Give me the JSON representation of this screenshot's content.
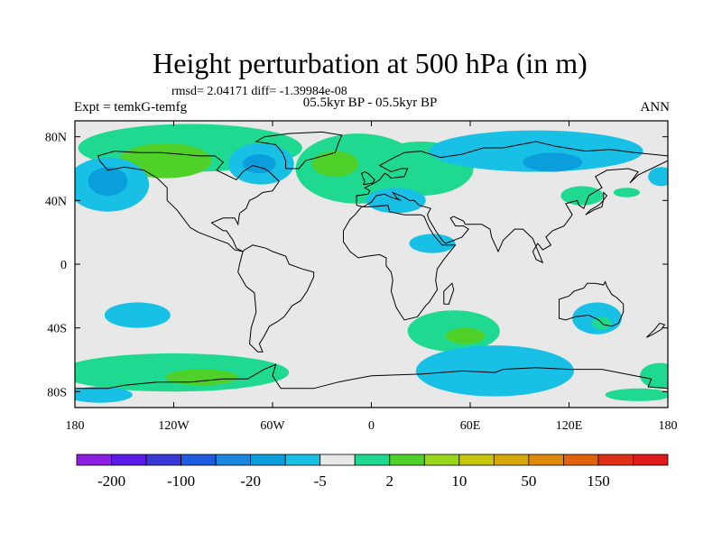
{
  "title": "Height perturbation at 500 hPa (in m)",
  "stats_line": "rmsd= 2.04171 diff= -1.39984e-08",
  "subtitle": "05.5kyr BP - 05.5kyr BP",
  "left_label": "Expt = temkG-temfg",
  "right_label": "ANN",
  "map": {
    "lon_range": [
      -180,
      180
    ],
    "lat_range": [
      -90,
      90
    ],
    "x_ticks": [
      {
        "lon": -180,
        "label": "180"
      },
      {
        "lon": -120,
        "label": "120W"
      },
      {
        "lon": -60,
        "label": "60W"
      },
      {
        "lon": 0,
        "label": "0"
      },
      {
        "lon": 60,
        "label": "60E"
      },
      {
        "lon": 120,
        "label": "120E"
      },
      {
        "lon": 180,
        "label": "180"
      }
    ],
    "y_ticks": [
      {
        "lat": 80,
        "label": "80N"
      },
      {
        "lat": 40,
        "label": "40N"
      },
      {
        "lat": 0,
        "label": "0"
      },
      {
        "lat": -40,
        "label": "40S"
      },
      {
        "lat": -80,
        "label": "80S"
      }
    ],
    "colors": {
      "background": "#e8e8e8",
      "neg_weak": "#18c0e6",
      "neg_mod": "#0a9fdc",
      "pos_weak": "#20d990",
      "pos_mod": "#50d12a"
    },
    "regions": [
      {
        "level": "pos_weak",
        "cx": -110,
        "cy": 73,
        "rx": 68,
        "ry": 15
      },
      {
        "level": "pos_mod",
        "cx": -125,
        "cy": 65,
        "rx": 28,
        "ry": 11
      },
      {
        "level": "pos_weak",
        "cx": -8,
        "cy": 60,
        "rx": 38,
        "ry": 22
      },
      {
        "level": "pos_mod",
        "cx": -22,
        "cy": 63,
        "rx": 14,
        "ry": 8
      },
      {
        "level": "pos_weak",
        "cx": 30,
        "cy": 60,
        "rx": 32,
        "ry": 17
      },
      {
        "level": "pos_weak",
        "cx": 128,
        "cy": 43,
        "rx": 13,
        "ry": 6
      },
      {
        "level": "pos_weak",
        "cx": 155,
        "cy": 45,
        "rx": 8,
        "ry": 3
      },
      {
        "level": "neg_weak",
        "cx": 100,
        "cy": 71,
        "rx": 65,
        "ry": 13
      },
      {
        "level": "neg_mod",
        "cx": 110,
        "cy": 64,
        "rx": 18,
        "ry": 6
      },
      {
        "level": "neg_weak",
        "cx": -67,
        "cy": 63,
        "rx": 20,
        "ry": 13
      },
      {
        "level": "neg_mod",
        "cx": -68,
        "cy": 63,
        "rx": 10,
        "ry": 6
      },
      {
        "level": "neg_weak",
        "cx": 15,
        "cy": 40,
        "rx": 18,
        "ry": 8
      },
      {
        "level": "neg_weak",
        "cx": 37,
        "cy": 13,
        "rx": 14,
        "ry": 6
      },
      {
        "level": "neg_weak",
        "cx": -160,
        "cy": 50,
        "rx": 25,
        "ry": 17
      },
      {
        "level": "neg_mod",
        "cx": -160,
        "cy": 52,
        "rx": 12,
        "ry": 9
      },
      {
        "level": "neg_weak",
        "cx": 176,
        "cy": 55,
        "rx": 8,
        "ry": 6
      },
      {
        "level": "neg_weak",
        "cx": -142,
        "cy": -32,
        "rx": 20,
        "ry": 8
      },
      {
        "level": "neg_weak",
        "cx": -158,
        "cy": -68,
        "rx": 30,
        "ry": 8
      },
      {
        "level": "pos_weak",
        "cx": -120,
        "cy": -68,
        "rx": 70,
        "ry": 12
      },
      {
        "level": "pos_mod",
        "cx": -103,
        "cy": -71,
        "rx": 22,
        "ry": 5
      },
      {
        "level": "neg_weak",
        "cx": -165,
        "cy": -82,
        "rx": 20,
        "ry": 5
      },
      {
        "level": "pos_weak",
        "cx": 50,
        "cy": -42,
        "rx": 28,
        "ry": 13
      },
      {
        "level": "pos_mod",
        "cx": 57,
        "cy": -45,
        "rx": 12,
        "ry": 5
      },
      {
        "level": "neg_weak",
        "cx": 75,
        "cy": -67,
        "rx": 48,
        "ry": 16
      },
      {
        "level": "neg_weak",
        "cx": 137,
        "cy": -34,
        "rx": 15,
        "ry": 10
      },
      {
        "level": "pos_weak",
        "cx": 140,
        "cy": -37,
        "rx": 6,
        "ry": 4
      },
      {
        "level": "pos_weak",
        "cx": 175,
        "cy": -70,
        "rx": 12,
        "ry": 8
      },
      {
        "level": "pos_weak",
        "cx": 162,
        "cy": -82,
        "rx": 20,
        "ry": 4
      }
    ]
  },
  "colorbar": {
    "colors": [
      "#8c1fe0",
      "#5b1ae6",
      "#3838d6",
      "#1e5be0",
      "#1a86e0",
      "#0a9fdc",
      "#18c0e6",
      "#e8e8e8",
      "#20d990",
      "#50d12a",
      "#98d61a",
      "#c9c60f",
      "#d6a70a",
      "#e08a0a",
      "#e0620a",
      "#e03018",
      "#e01a1a"
    ],
    "labels": [
      {
        "after_box": 1,
        "text": "-200"
      },
      {
        "after_box": 3,
        "text": "-100"
      },
      {
        "after_box": 5,
        "text": "-20"
      },
      {
        "after_box": 7,
        "text": "-5"
      },
      {
        "after_box": 9,
        "text": "2"
      },
      {
        "after_box": 11,
        "text": "10"
      },
      {
        "after_box": 13,
        "text": "50"
      },
      {
        "after_box": 15,
        "text": "150"
      }
    ]
  }
}
